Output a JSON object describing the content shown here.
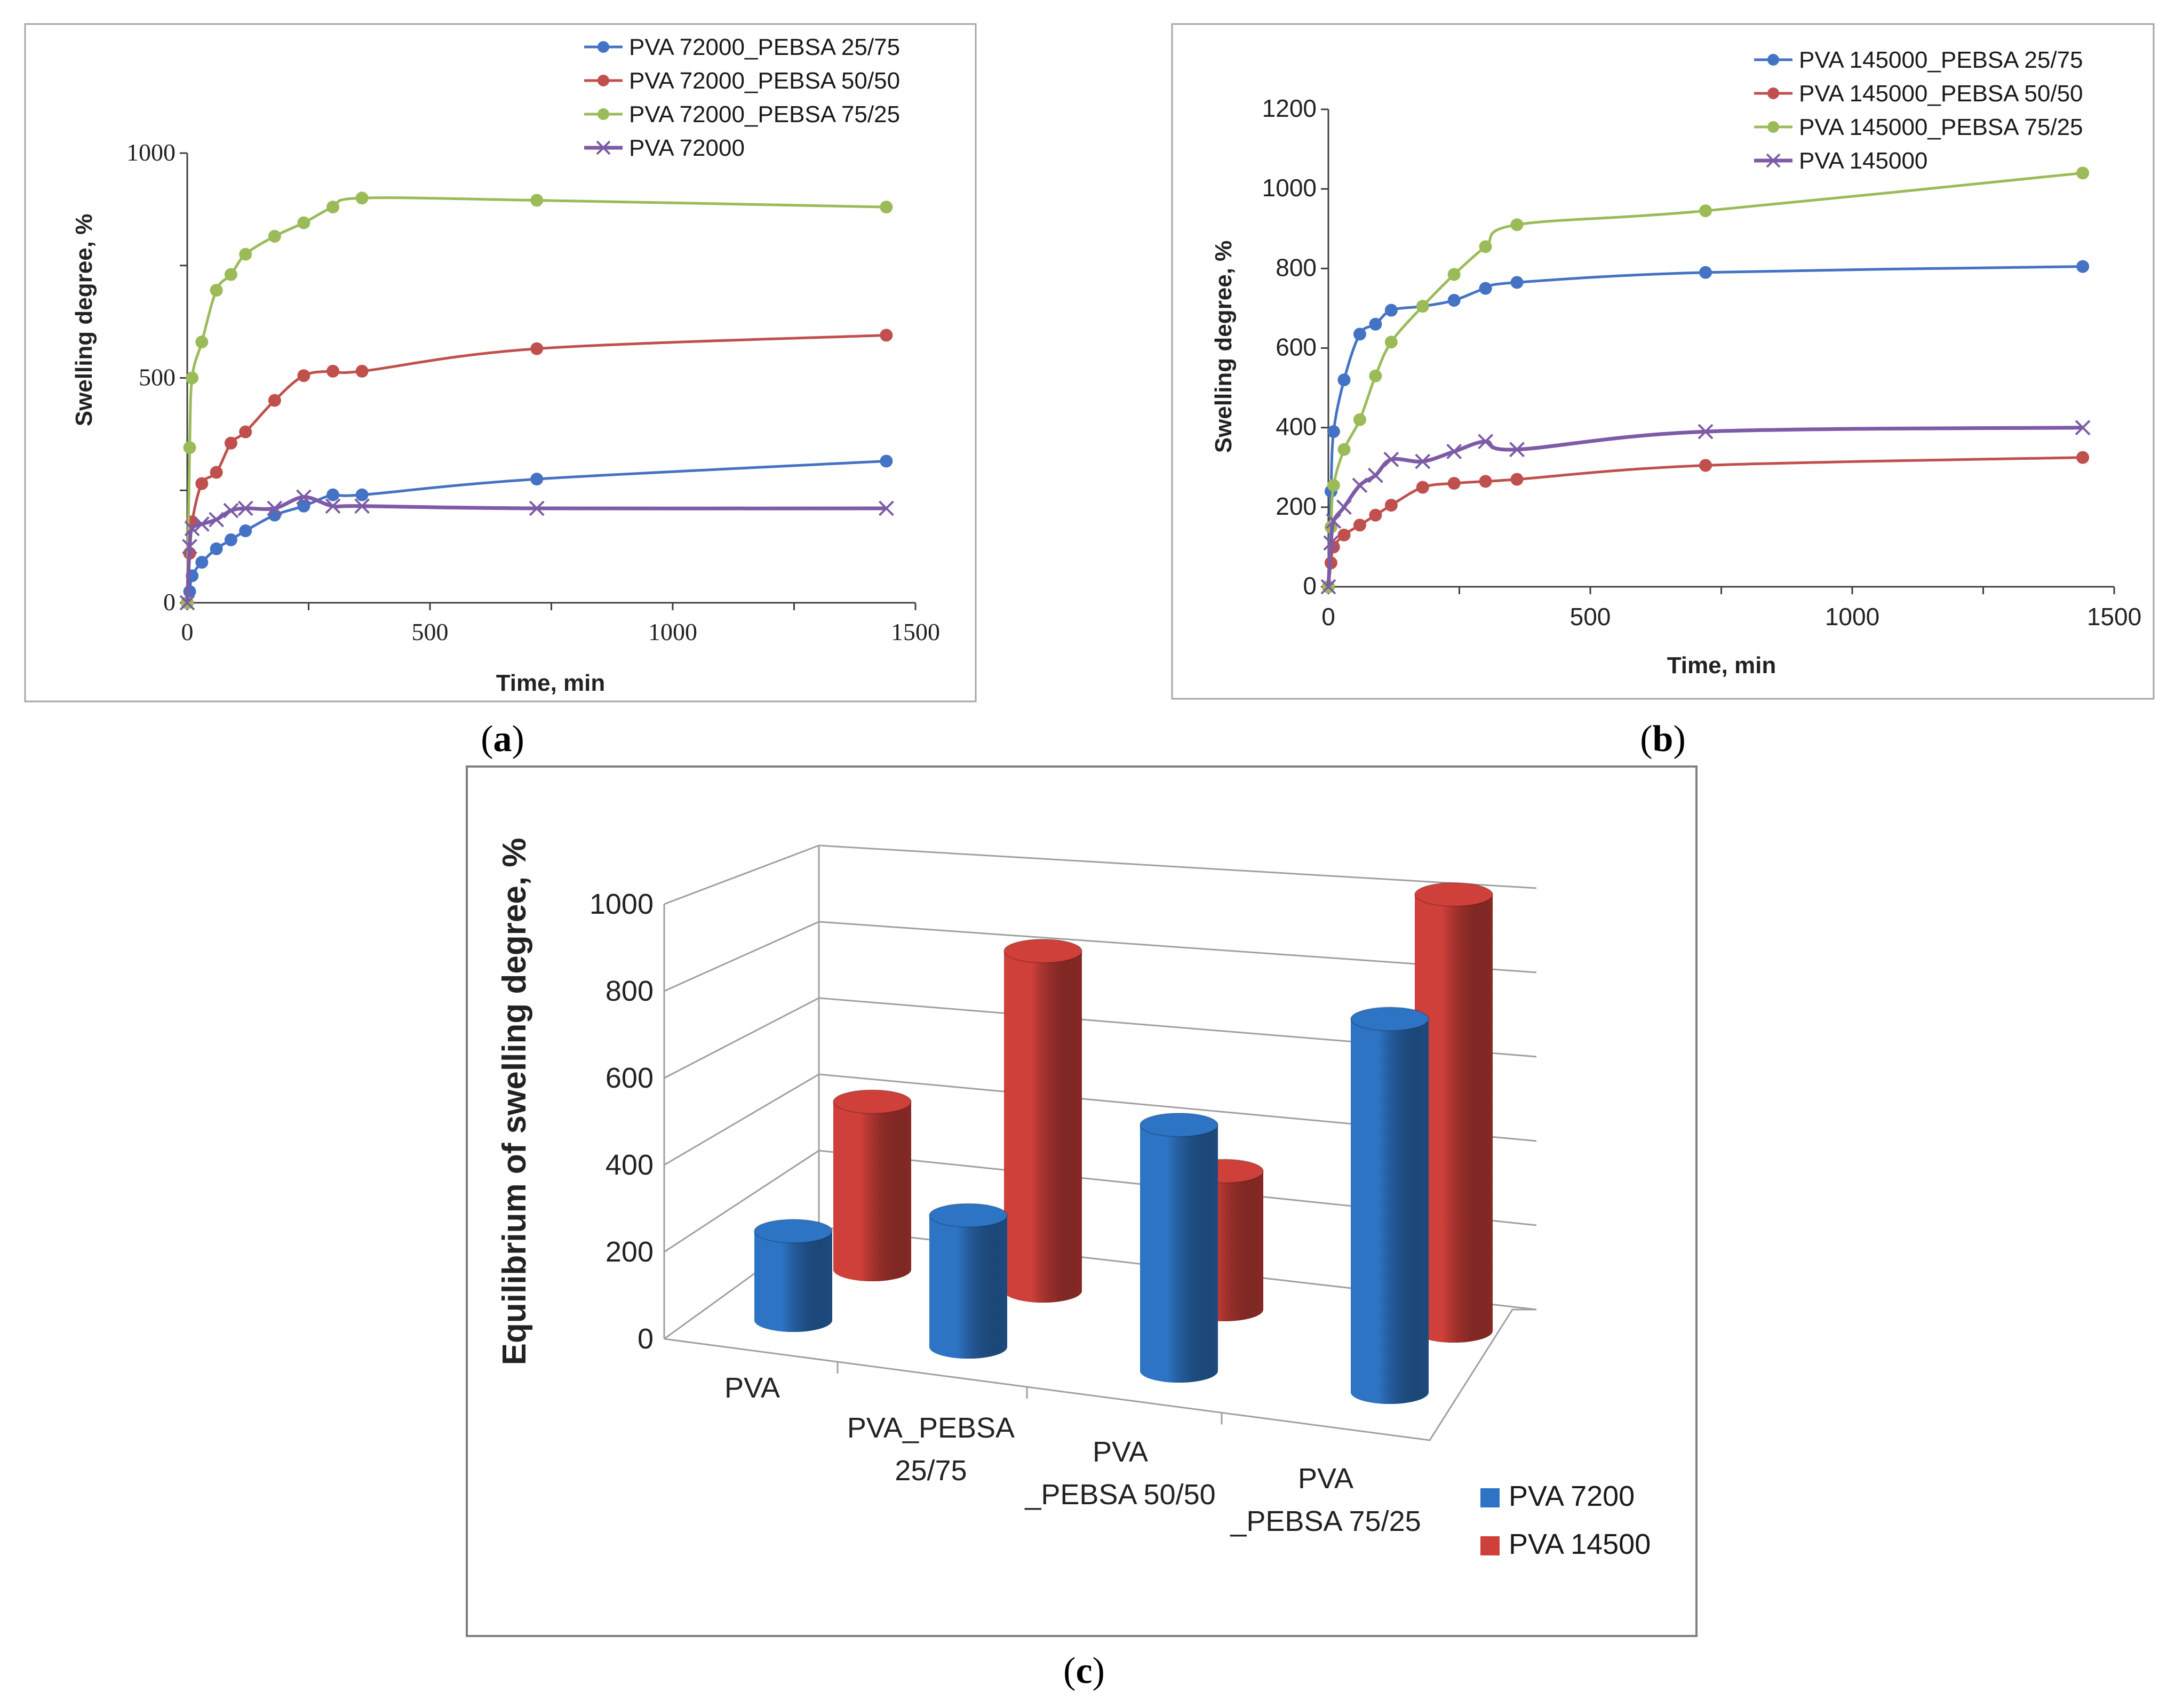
{
  "colors": {
    "blue": "#4472C4",
    "red": "#C0504D",
    "green": "#9BBB59",
    "purple": "#7D5BA6",
    "bar_blue": "#2E74C4",
    "bar_red": "#D0403A",
    "frame": "#a6a6a6",
    "axis": "#404040"
  },
  "panel_labels": {
    "a": "a",
    "b": "b",
    "c": "c"
  },
  "chart_data": [
    {
      "id": "a",
      "type": "line",
      "title": "",
      "xlabel": "Time, min",
      "ylabel": "Swelling degree, %",
      "xlim": [
        0,
        1500
      ],
      "ylim": [
        0,
        1000
      ],
      "xticks": [
        0,
        500,
        1000,
        1500
      ],
      "yticks": [
        0,
        500,
        1000
      ],
      "series": [
        {
          "name": "PVA 72000_PEBSA 25/75",
          "color": "#4472C4",
          "marker": "circle",
          "x": [
            0,
            5,
            10,
            30,
            60,
            90,
            120,
            180,
            240,
            300,
            360,
            720,
            1440
          ],
          "y": [
            0,
            25,
            60,
            90,
            120,
            140,
            160,
            195,
            215,
            240,
            240,
            275,
            315
          ]
        },
        {
          "name": "PVA 72000_PEBSA 50/50",
          "color": "#C0504D",
          "marker": "circle",
          "x": [
            0,
            5,
            10,
            30,
            60,
            90,
            120,
            180,
            240,
            300,
            360,
            720,
            1440
          ],
          "y": [
            0,
            110,
            180,
            265,
            290,
            355,
            380,
            450,
            505,
            515,
            515,
            565,
            595
          ]
        },
        {
          "name": "PVA 72000_PEBSA 75/25",
          "color": "#9BBB59",
          "marker": "circle",
          "x": [
            0,
            5,
            10,
            30,
            60,
            90,
            120,
            180,
            240,
            300,
            360,
            720,
            1440
          ],
          "y": [
            0,
            345,
            500,
            580,
            695,
            730,
            775,
            815,
            845,
            880,
            900,
            895,
            880
          ]
        },
        {
          "name": "PVA 72000",
          "color": "#7D5BA6",
          "marker": "x",
          "x": [
            0,
            5,
            10,
            30,
            60,
            90,
            120,
            180,
            240,
            300,
            360,
            720,
            1440
          ],
          "y": [
            0,
            125,
            165,
            175,
            185,
            205,
            210,
            210,
            235,
            215,
            215,
            210,
            210
          ]
        }
      ]
    },
    {
      "id": "b",
      "type": "line",
      "title": "",
      "xlabel": "Time, min",
      "ylabel": "Swelling degree, %",
      "xlim": [
        0,
        1500
      ],
      "ylim": [
        0,
        1200
      ],
      "xticks": [
        0,
        500,
        1000,
        1500
      ],
      "yticks": [
        0,
        200,
        400,
        600,
        800,
        1000,
        1200
      ],
      "series": [
        {
          "name": "PVA 145000_PEBSA 25/75",
          "color": "#4472C4",
          "marker": "circle",
          "x": [
            0,
            5,
            10,
            30,
            60,
            90,
            120,
            180,
            240,
            300,
            360,
            720,
            1440
          ],
          "y": [
            0,
            240,
            390,
            520,
            635,
            660,
            695,
            705,
            720,
            750,
            765,
            790,
            805
          ]
        },
        {
          "name": "PVA 145000_PEBSA 50/50",
          "color": "#C0504D",
          "marker": "circle",
          "x": [
            0,
            5,
            10,
            30,
            60,
            90,
            120,
            180,
            240,
            300,
            360,
            720,
            1440
          ],
          "y": [
            0,
            60,
            100,
            130,
            155,
            180,
            205,
            250,
            260,
            265,
            270,
            305,
            325
          ]
        },
        {
          "name": "PVA 145000_PEBSA 75/25",
          "color": "#9BBB59",
          "marker": "circle",
          "x": [
            0,
            5,
            10,
            30,
            60,
            90,
            120,
            180,
            240,
            300,
            360,
            720,
            1440
          ],
          "y": [
            0,
            150,
            255,
            345,
            420,
            530,
            615,
            705,
            785,
            855,
            910,
            945,
            1040
          ]
        },
        {
          "name": "PVA 145000",
          "color": "#7D5BA6",
          "marker": "x",
          "x": [
            0,
            5,
            10,
            30,
            60,
            90,
            120,
            180,
            240,
            300,
            360,
            720,
            1440
          ],
          "y": [
            0,
            110,
            165,
            200,
            255,
            280,
            320,
            315,
            340,
            365,
            345,
            390,
            400
          ]
        }
      ]
    },
    {
      "id": "c",
      "type": "bar",
      "title": "",
      "xlabel": "",
      "ylabel": "Equilibrium of swelling degree, %",
      "ylim": [
        0,
        1000
      ],
      "yticks": [
        0,
        200,
        400,
        600,
        800,
        1000
      ],
      "categories": [
        "PVA",
        "PVA_PEBSA 25/75",
        "PVA _PEBSA 50/50",
        "PVA _PEBSA 75/25"
      ],
      "series": [
        {
          "name": "PVA 7200",
          "color": "#2E74C4",
          "values": [
            210,
            310,
            580,
            880
          ]
        },
        {
          "name": "PVA 14500",
          "color": "#D0403A",
          "values": [
            400,
            810,
            330,
            1040
          ]
        }
      ]
    }
  ]
}
